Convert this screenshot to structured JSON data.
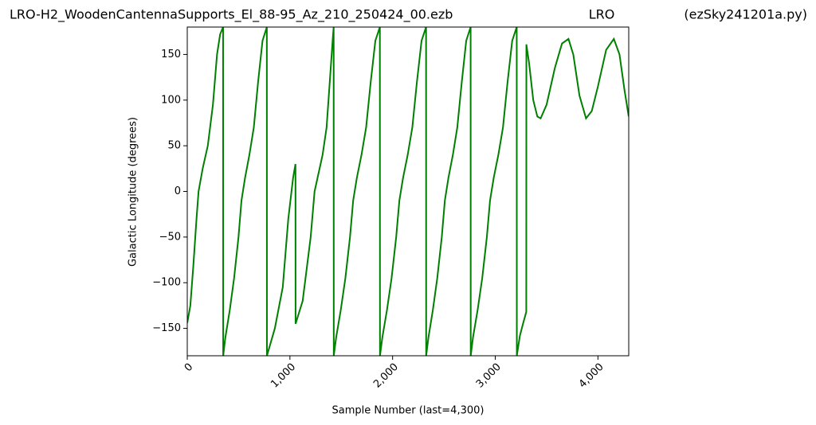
{
  "chart_data": {
    "type": "line",
    "title": "LRO-H2_WoodenCantennaSupports_El_88-95_Az_210_250424_00.ezb",
    "subtitle": "LRO",
    "annotation": "(ezSky241201a.py)",
    "x_label": "Sample Number (last=4,300)",
    "y_label": "Galactic Longitude (degrees)",
    "color": "#008000",
    "x": [
      0,
      30,
      60,
      90,
      110,
      150,
      200,
      250,
      290,
      320,
      349,
      350,
      371,
      414,
      456,
      499,
      528,
      563,
      605,
      648,
      690,
      733,
      775,
      776,
      853,
      930,
      984,
      1031,
      1054,
      1055,
      1124,
      1202,
      1240,
      1318,
      1357,
      1419,
      1426,
      1427,
      1450,
      1495,
      1540,
      1585,
      1616,
      1652,
      1697,
      1742,
      1787,
      1832,
      1876,
      1877,
      1900,
      1945,
      1990,
      2035,
      2066,
      2102,
      2147,
      2192,
      2237,
      2282,
      2326,
      2327,
      2349,
      2392,
      2435,
      2479,
      2509,
      2544,
      2587,
      2630,
      2674,
      2717,
      2760,
      2761,
      2783,
      2828,
      2873,
      2918,
      2949,
      2985,
      3030,
      3075,
      3120,
      3165,
      3209,
      3210,
      3240,
      3270,
      3302,
      3303,
      3330,
      3370,
      3410,
      3442,
      3500,
      3580,
      3650,
      3713,
      3760,
      3820,
      3884,
      3940,
      4000,
      4080,
      4155,
      4210,
      4260,
      4300
    ],
    "values": [
      -144,
      -125,
      -80,
      -30,
      0,
      25,
      50,
      95,
      150,
      172,
      180,
      -180,
      -160,
      -130,
      -95,
      -50,
      -10,
      15,
      40,
      70,
      120,
      165,
      180,
      -180,
      -150,
      -105,
      -30,
      15,
      30,
      -145,
      -120,
      -50,
      0,
      40,
      70,
      170,
      180,
      -180,
      -160,
      -130,
      -95,
      -50,
      -10,
      15,
      40,
      70,
      120,
      165,
      180,
      -180,
      -160,
      -130,
      -95,
      -50,
      -10,
      15,
      40,
      70,
      120,
      165,
      180,
      -180,
      -160,
      -130,
      -95,
      -50,
      -10,
      15,
      40,
      70,
      120,
      165,
      180,
      -180,
      -160,
      -130,
      -95,
      -50,
      -10,
      15,
      40,
      70,
      120,
      165,
      180,
      -180,
      -158,
      -145,
      -132,
      161,
      140,
      100,
      82,
      80,
      95,
      135,
      162,
      167,
      150,
      105,
      80,
      88,
      115,
      155,
      167,
      150,
      110,
      82
    ],
    "xlim": [
      0,
      4300
    ],
    "ylim": [
      -180,
      180
    ],
    "xticks": [
      0,
      {
        "value": 1000,
        "label": "1,000"
      },
      {
        "value": 2000,
        "label": "2,000"
      },
      {
        "value": 3000,
        "label": "3,000"
      },
      {
        "value": 4000,
        "label": "4,000"
      }
    ],
    "yticks": [
      {
        "value": -150,
        "label": "−150"
      },
      {
        "value": -100,
        "label": "−100"
      },
      {
        "value": -50,
        "label": "−50"
      },
      0,
      50,
      100,
      150
    ],
    "grid": false
  }
}
